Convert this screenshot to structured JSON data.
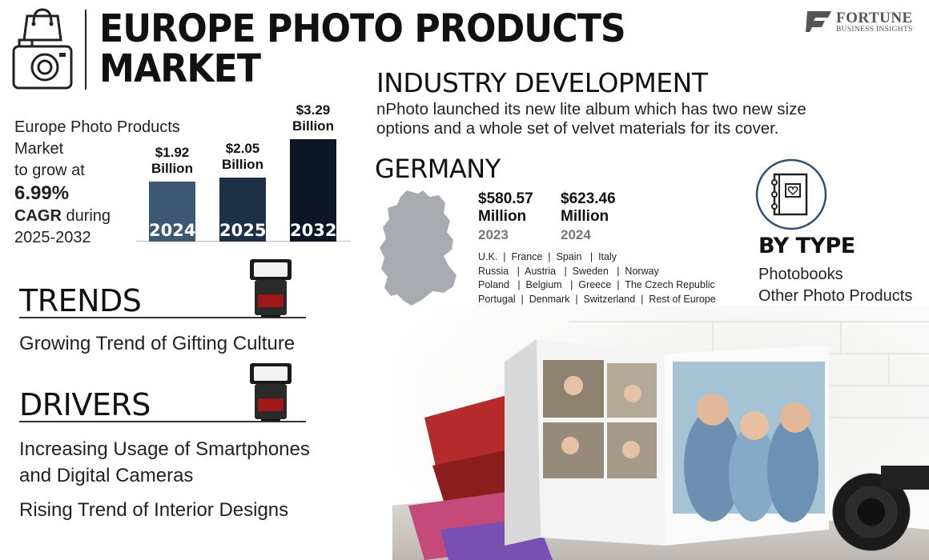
{
  "header": {
    "title_line1": "EUROPE PHOTO PRODUCTS",
    "title_line2": "MARKET",
    "logo_name": "FORTUNE",
    "logo_sub": "BUSINESS INSIGHTS"
  },
  "intro": {
    "line1": "Europe Photo Products",
    "line2": "Market",
    "line3": "to grow at",
    "cagr_value": "6.99%",
    "cagr_label": "CAGR",
    "cagr_suffix": " during",
    "period": "2025-2032"
  },
  "chart_data": {
    "type": "bar",
    "categories": [
      "2024",
      "2025",
      "2032"
    ],
    "values": [
      1.92,
      2.05,
      3.29
    ],
    "value_labels": [
      [
        "$1.92",
        "Billion"
      ],
      [
        "$2.05",
        "Billion"
      ],
      [
        "$3.29",
        "Billion"
      ]
    ],
    "unit": "Billion",
    "colors": [
      "#3d5873",
      "#1e2f48",
      "#0e1626"
    ]
  },
  "trends": {
    "heading": "TRENDS",
    "items": [
      "Growing Trend of Gifting Culture"
    ]
  },
  "drivers": {
    "heading": "DRIVERS",
    "items": [
      "Increasing Usage of Smartphones",
      "and Digital Cameras",
      "Rising Trend of Interior Designs"
    ]
  },
  "industry": {
    "heading": "INDUSTRY DEVELOPMENT",
    "line1": "nPhoto launched its new lite album which has two new size",
    "line2": "options and a whole set of velvet materials for its cover."
  },
  "germany": {
    "heading": "GERMANY",
    "values": [
      {
        "amount": "$580.57",
        "unit": "Million",
        "year": "2023"
      },
      {
        "amount": "$623.46",
        "unit": "Million",
        "year": "2024"
      }
    ],
    "country_rows": [
      "U.K.  |  France  |  Spain   |  Italy",
      "Russia   |  Austria   |  Sweden   |  Norway",
      "Poland   |  Belgium   |  Greece  |  The Czech Republic",
      "Portugal  |  Denmark  |  Switzerland  |  Rest of Europe"
    ]
  },
  "by_type": {
    "heading": "BY TYPE",
    "items": [
      "Photobooks",
      "Other Photo Products"
    ]
  },
  "icons": {
    "market": "shopping-bag-camera-icon",
    "flash": "camera-flash-icon",
    "album": "photo-album-heart-icon",
    "map": "germany-map-icon"
  }
}
